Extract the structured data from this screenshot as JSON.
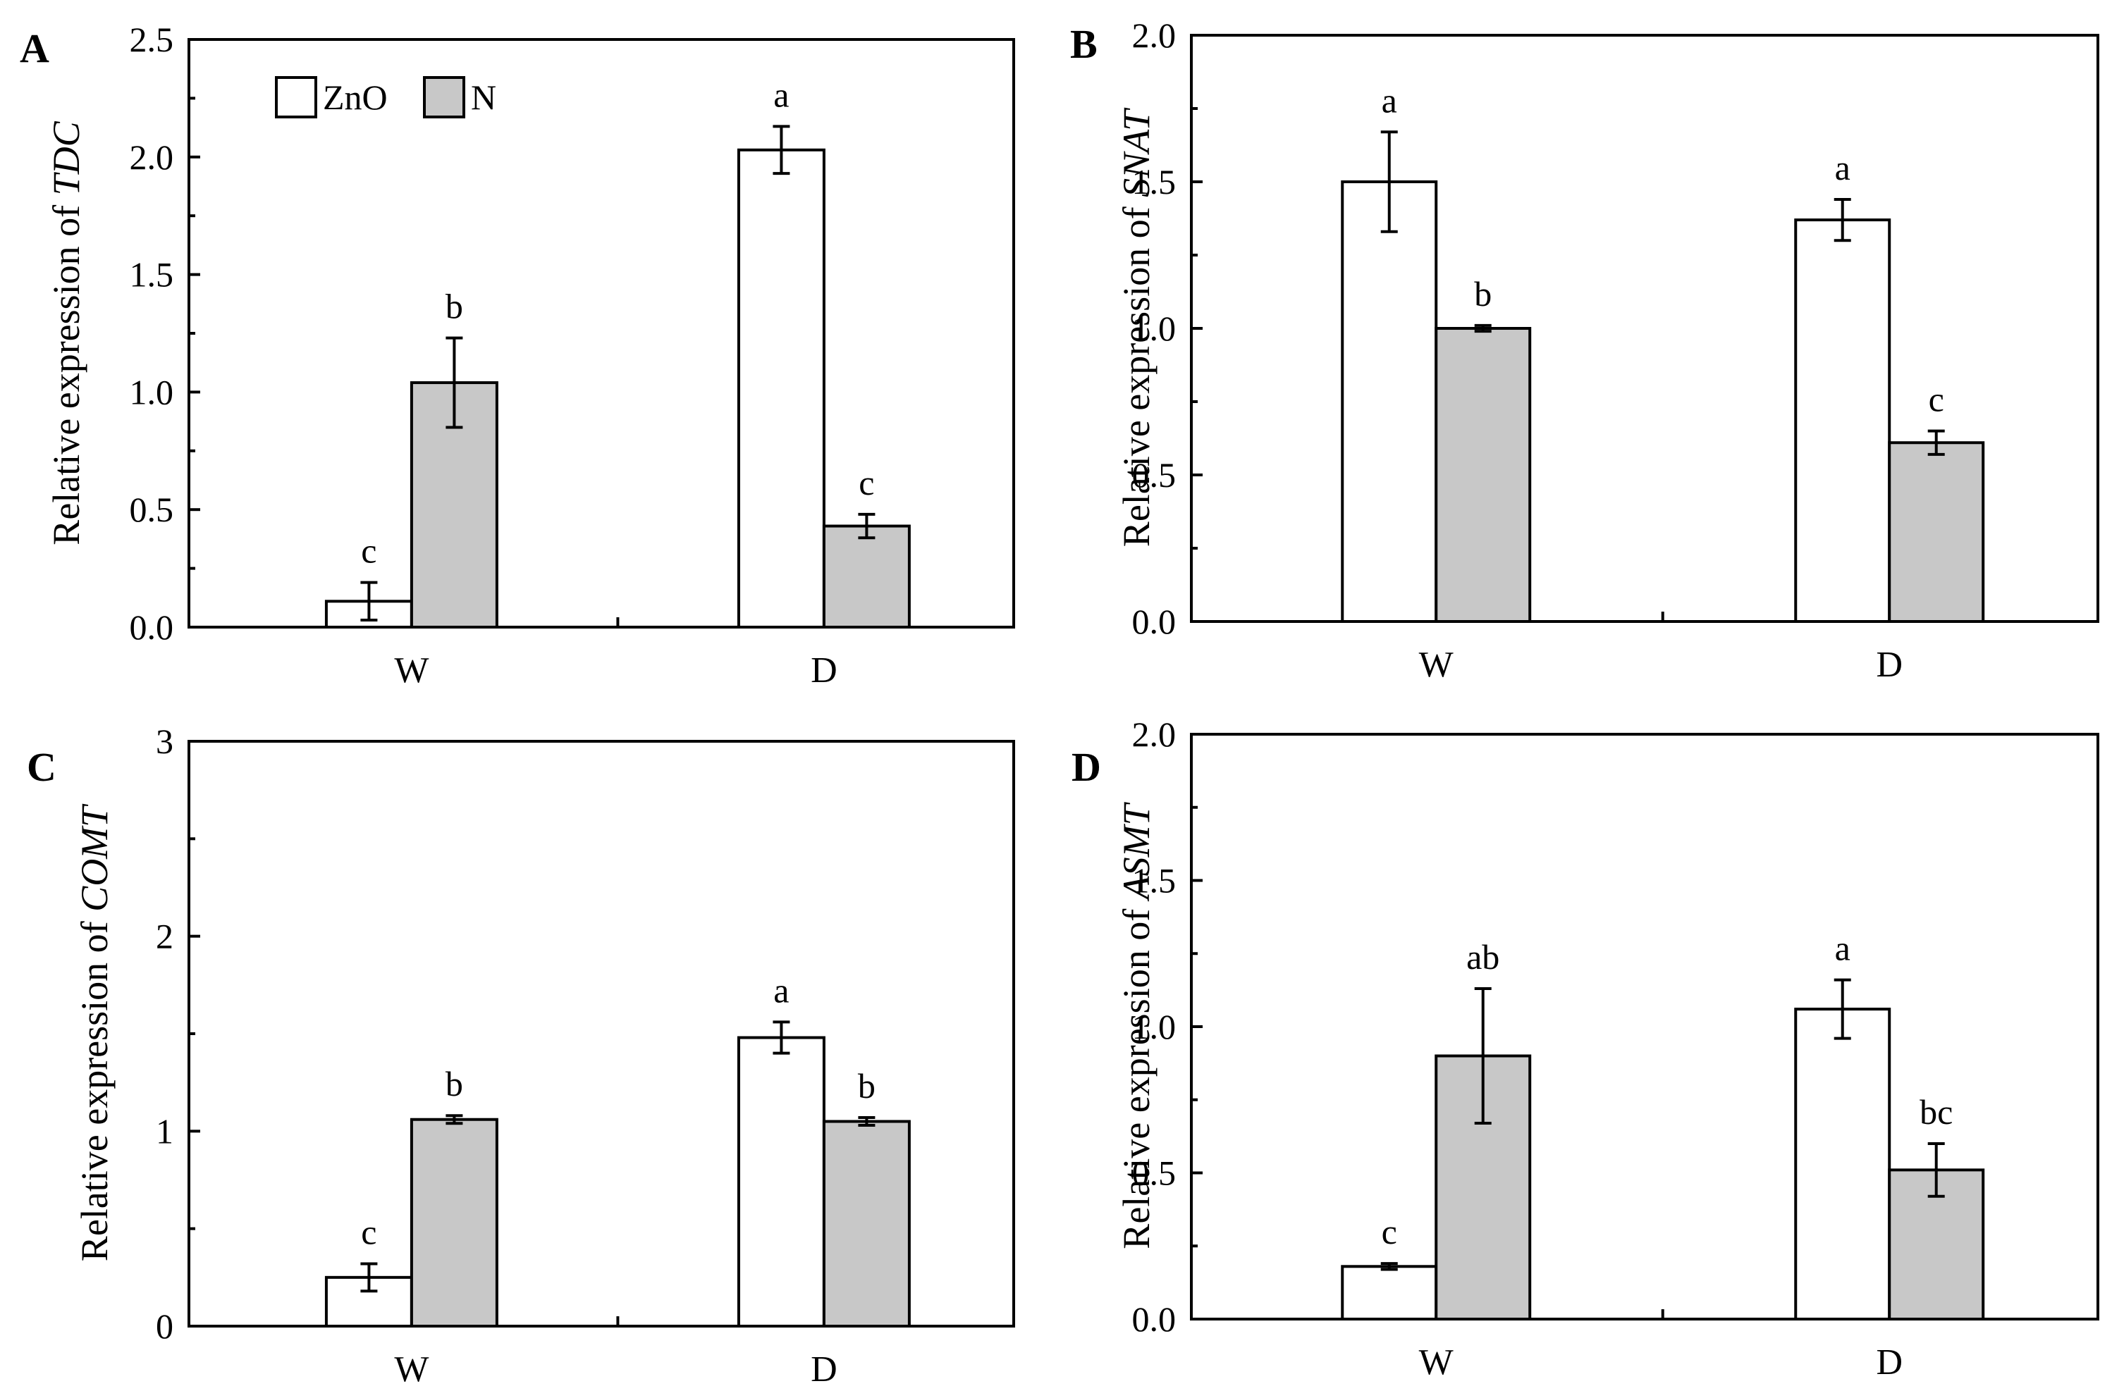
{
  "figure": {
    "legend": {
      "labels": [
        "ZnO",
        "N"
      ],
      "colors": [
        "#ffffff",
        "#c8c8c8"
      ]
    }
  },
  "chart_data": [
    {
      "type": "bar",
      "panel_label": "A",
      "ylabel_prefix": "Relative expression of ",
      "ylabel_gene": "TDC",
      "categories": [
        "W",
        "D"
      ],
      "ylim": [
        0,
        2.5
      ],
      "yticks": [
        0.0,
        0.5,
        1.0,
        1.5,
        2.0,
        2.5
      ],
      "ytick_labels": [
        "0.0",
        "0.5",
        "1.0",
        "1.5",
        "2.0",
        "2.5"
      ],
      "show_legend": true,
      "series": [
        {
          "name": "ZnO",
          "values": [
            0.11,
            2.03
          ],
          "errors": [
            0.08,
            0.1
          ],
          "letters": [
            "c",
            "a"
          ]
        },
        {
          "name": "N",
          "values": [
            1.04,
            0.43
          ],
          "errors": [
            0.19,
            0.05
          ],
          "letters": [
            "b",
            "c"
          ]
        }
      ]
    },
    {
      "type": "bar",
      "panel_label": "B",
      "ylabel_prefix": "Relative expression of ",
      "ylabel_gene": "SNAT",
      "categories": [
        "W",
        "D"
      ],
      "ylim": [
        0,
        2.0
      ],
      "yticks": [
        0.0,
        0.5,
        1.0,
        1.5,
        2.0
      ],
      "ytick_labels": [
        "0.0",
        "0.5",
        "1.0",
        "1.5",
        "2.0"
      ],
      "show_legend": false,
      "series": [
        {
          "name": "ZnO",
          "values": [
            1.5,
            1.37
          ],
          "errors": [
            0.17,
            0.07
          ],
          "letters": [
            "a",
            "a"
          ]
        },
        {
          "name": "N",
          "values": [
            1.0,
            0.61
          ],
          "errors": [
            0.01,
            0.04
          ],
          "letters": [
            "b",
            "c"
          ]
        }
      ]
    },
    {
      "type": "bar",
      "panel_label": "C",
      "ylabel_prefix": "Relative expression of ",
      "ylabel_gene": "COMT",
      "categories": [
        "W",
        "D"
      ],
      "ylim": [
        0,
        3
      ],
      "yticks": [
        0,
        1,
        2,
        3
      ],
      "ytick_labels": [
        "0",
        "1",
        "2",
        "3"
      ],
      "show_legend": false,
      "series": [
        {
          "name": "ZnO",
          "values": [
            0.25,
            1.48
          ],
          "errors": [
            0.07,
            0.08
          ],
          "letters": [
            "c",
            "a"
          ]
        },
        {
          "name": "N",
          "values": [
            1.06,
            1.05
          ],
          "errors": [
            0.02,
            0.02
          ],
          "letters": [
            "b",
            "b"
          ]
        }
      ]
    },
    {
      "type": "bar",
      "panel_label": "D",
      "ylabel_prefix": "Relative expression of ",
      "ylabel_gene": "ASMT",
      "categories": [
        "W",
        "D"
      ],
      "ylim": [
        0,
        2.0
      ],
      "yticks": [
        0.0,
        0.5,
        1.0,
        1.5,
        2.0
      ],
      "ytick_labels": [
        "0.0",
        "0.5",
        "1.0",
        "1.5",
        "2.0"
      ],
      "show_legend": false,
      "series": [
        {
          "name": "ZnO",
          "values": [
            0.18,
            1.06
          ],
          "errors": [
            0.01,
            0.1
          ],
          "letters": [
            "c",
            "a"
          ]
        },
        {
          "name": "N",
          "values": [
            0.9,
            0.51
          ],
          "errors": [
            0.23,
            0.09
          ],
          "letters": [
            "ab",
            "bc"
          ]
        }
      ]
    }
  ]
}
